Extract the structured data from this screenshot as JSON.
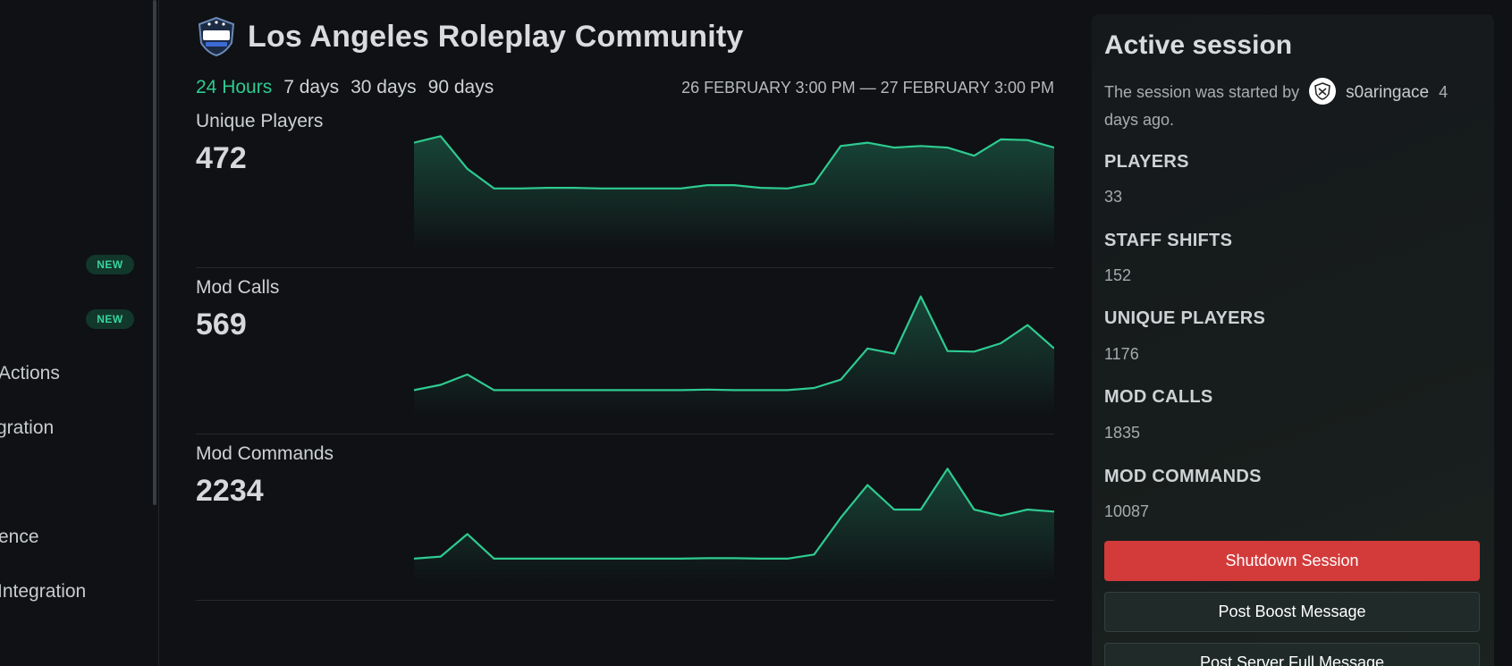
{
  "sidebar": {
    "items": [
      {
        "label": "",
        "badge": "NEW"
      },
      {
        "label": "",
        "badge": "NEW"
      },
      {
        "label": "Actions"
      },
      {
        "label": "gration"
      },
      {
        "label": "ence"
      },
      {
        "label": "Integration"
      }
    ]
  },
  "header": {
    "title": "Los Angeles Roleplay Community",
    "logo_icon": "larp-community-shield-logo"
  },
  "ranges": [
    {
      "label": "24 Hours",
      "active": true
    },
    {
      "label": "7 days",
      "active": false
    },
    {
      "label": "30 days",
      "active": false
    },
    {
      "label": "90 days",
      "active": false
    }
  ],
  "date_range": "26 FEBRUARY 3:00 PM — 27 FEBRUARY 3:00 PM",
  "colors": {
    "accent": "#2ecb91",
    "danger": "#d33a3a"
  },
  "stats": [
    {
      "label": "Unique Players",
      "value": "472"
    },
    {
      "label": "Mod Calls",
      "value": "569"
    },
    {
      "label": "Mod Commands",
      "value": "2234"
    }
  ],
  "chart_data": [
    {
      "type": "area",
      "series": [
        {
          "values": [
            28,
            30,
            20,
            14,
            14,
            14.2,
            14.2,
            14,
            14,
            14,
            14,
            15,
            15,
            14.2,
            14,
            15.5,
            27,
            28,
            26.5,
            27,
            26.5,
            24,
            29,
            28.8,
            26.5
          ]
        }
      ],
      "ylim": [
        0,
        35
      ]
    },
    {
      "type": "area",
      "series": [
        {
          "values": [
            2,
            3,
            5,
            2,
            2,
            2,
            2,
            2,
            2,
            2,
            2,
            2.1,
            2,
            2,
            2,
            2.4,
            4,
            10,
            9,
            20,
            9.5,
            9.4,
            11,
            14.5,
            10
          ]
        }
      ],
      "ylim": [
        0,
        22
      ]
    },
    {
      "type": "area",
      "series": [
        {
          "values": [
            2,
            2.5,
            8,
            2,
            2,
            2,
            2,
            2,
            2,
            2,
            2,
            2.1,
            2.1,
            2,
            2,
            3,
            12,
            20,
            14,
            14,
            24,
            14,
            12.5,
            14,
            13.5
          ]
        }
      ],
      "ylim": [
        0,
        28
      ]
    }
  ],
  "session": {
    "title": "Active session",
    "desc_prefix": "The session was started by",
    "username": "s0aringace",
    "time_ago": "4 days ago.",
    "metrics": [
      {
        "key": "PLAYERS",
        "value": "33"
      },
      {
        "key": "STAFF SHIFTS",
        "value": "152"
      },
      {
        "key": "UNIQUE PLAYERS",
        "value": "1176"
      },
      {
        "key": "MOD CALLS",
        "value": "1835"
      },
      {
        "key": "MOD COMMANDS",
        "value": "10087"
      }
    ],
    "buttons": {
      "shutdown": "Shutdown Session",
      "boost": "Post Boost Message",
      "full": "Post Server Full Message"
    }
  }
}
